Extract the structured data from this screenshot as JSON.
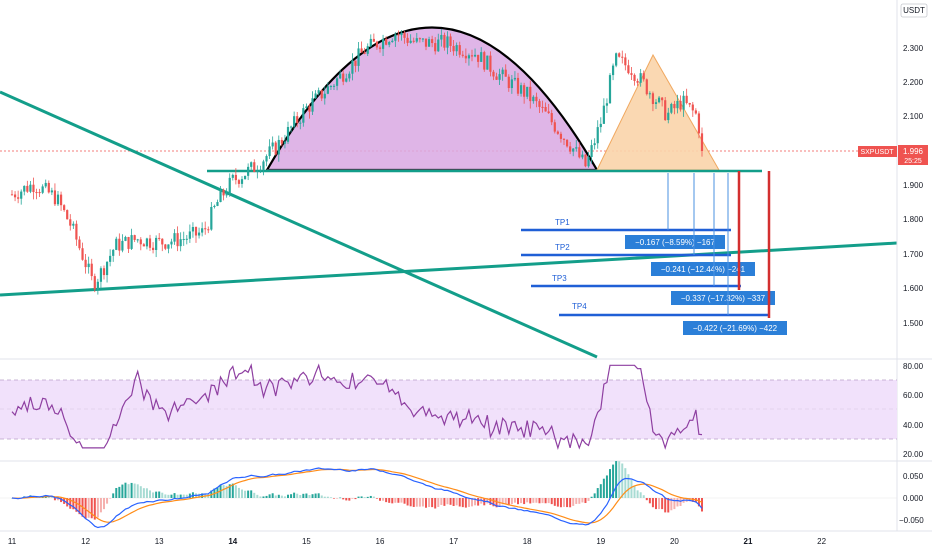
{
  "price_pane": {
    "currency": "USDT",
    "symbol": "SXPUSDT",
    "last_price": "1.996",
    "countdown": "25:25",
    "y_ticks": [
      "2.300",
      "2.200",
      "2.100",
      "1.900",
      "1.800",
      "1.700",
      "1.600",
      "1.500"
    ],
    "targets": [
      {
        "label": "TP1",
        "measure": "−0.167 (−8.59%) −167"
      },
      {
        "label": "TP2",
        "measure": "−0.241 (−12.44%) −241"
      },
      {
        "label": "TP3",
        "measure": "−0.337 (−17.32%) −337"
      },
      {
        "label": "TP4",
        "measure": "−0.422 (−21.69%) −422"
      }
    ]
  },
  "rsi_pane": {
    "y_ticks": [
      "80.00",
      "60.00",
      "40.00",
      "20.00"
    ]
  },
  "macd_pane": {
    "y_ticks": [
      "0.050",
      "0.000",
      "−0.050"
    ]
  },
  "time_axis": {
    "ticks": [
      {
        "label": "11",
        "bold": false
      },
      {
        "label": "12",
        "bold": false
      },
      {
        "label": "13",
        "bold": false
      },
      {
        "label": "14",
        "bold": true
      },
      {
        "label": "15",
        "bold": false
      },
      {
        "label": "16",
        "bold": false
      },
      {
        "label": "17",
        "bold": false
      },
      {
        "label": "18",
        "bold": false
      },
      {
        "label": "19",
        "bold": false
      },
      {
        "label": "20",
        "bold": false
      },
      {
        "label": "21",
        "bold": true
      },
      {
        "label": "22",
        "bold": false
      }
    ]
  },
  "colors": {
    "up": "#26a69a",
    "down": "#ef5350",
    "trendline": "#139e8a",
    "target_line": "#1f5fd6",
    "measure_box": "#2b7fd8",
    "stop_bar": "#d32f2f",
    "cup_fill": "#d9a8e3",
    "peak_fill": "#f9d4aa",
    "rsi_line": "#8e3fa1",
    "rsi_band": "#f1e1fb",
    "macd_line": "#2962ff",
    "signal_line": "#ff8d18"
  },
  "chart_data": {
    "type": "candlestick",
    "x_axis": "date",
    "x_range": [
      "11",
      "22"
    ],
    "y_range": [
      1.38,
      2.42
    ],
    "price_trend": [
      [
        "11.0",
        1.87
      ],
      [
        "11.3",
        1.9
      ],
      [
        "11.6",
        1.86
      ],
      [
        "11.8",
        1.78
      ],
      [
        "12.0",
        1.67
      ],
      [
        "12.1",
        1.61
      ],
      [
        "12.2",
        1.64
      ],
      [
        "12.4",
        1.72
      ],
      [
        "12.7",
        1.74
      ],
      [
        "13.0",
        1.73
      ],
      [
        "13.3",
        1.74
      ],
      [
        "13.6",
        1.76
      ],
      [
        "13.8",
        1.85
      ],
      [
        "14.0",
        1.91
      ],
      [
        "14.3",
        1.95
      ],
      [
        "14.6",
        2.01
      ],
      [
        "15.0",
        2.12
      ],
      [
        "15.4",
        2.2
      ],
      [
        "15.8",
        2.29
      ],
      [
        "16.2",
        2.34
      ],
      [
        "16.5",
        2.31
      ],
      [
        "16.9",
        2.31
      ],
      [
        "17.3",
        2.28
      ],
      [
        "17.6",
        2.22
      ],
      [
        "18.0",
        2.16
      ],
      [
        "18.3",
        2.09
      ],
      [
        "18.6",
        2.01
      ],
      [
        "18.8",
        1.95
      ],
      [
        "19.0",
        2.08
      ],
      [
        "19.2",
        2.26
      ],
      [
        "19.4",
        2.24
      ],
      [
        "19.7",
        2.16
      ],
      [
        "19.9",
        2.1
      ],
      [
        "20.1",
        2.14
      ],
      [
        "20.3",
        2.1
      ],
      [
        "20.4",
        1.996
      ]
    ],
    "horizontal_levels": {
      "neckline": 1.95,
      "TP1": 1.775,
      "TP2": 1.695,
      "TP3": 1.605,
      "TP4": 1.52
    },
    "rsi": {
      "range": [
        20,
        80
      ],
      "band": [
        30,
        70
      ],
      "last": 33
    },
    "macd": {
      "range": [
        -0.065,
        0.075
      ],
      "last": -0.005
    }
  }
}
